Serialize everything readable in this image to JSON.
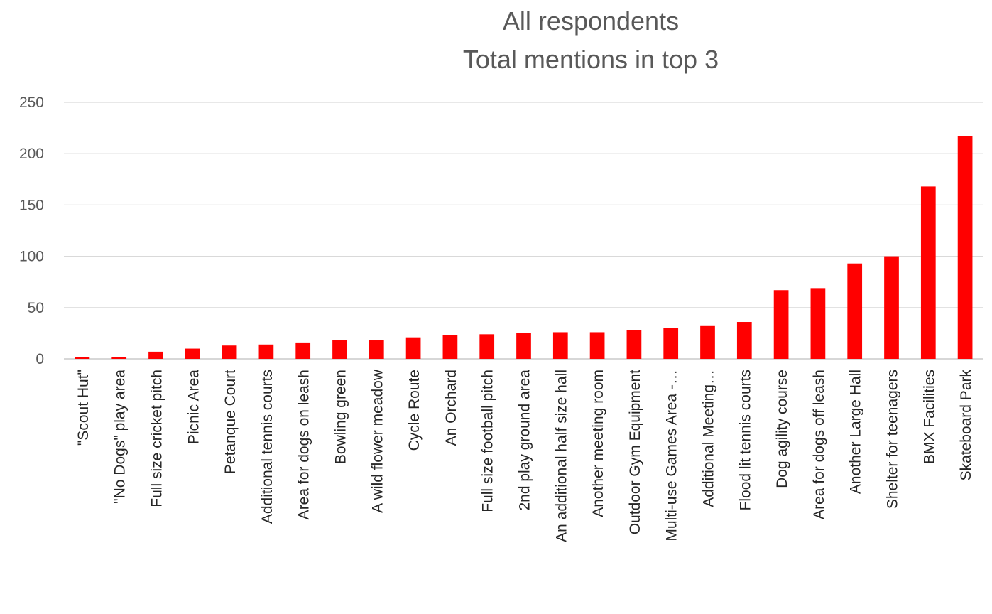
{
  "chart_data": {
    "type": "bar",
    "title_lines": [
      "All respondents",
      "Total mentions in top 3"
    ],
    "xlabel": "",
    "ylabel": "",
    "ylim": [
      0,
      250
    ],
    "yticks": [
      0,
      50,
      100,
      150,
      200,
      250
    ],
    "grid": true,
    "legend": "none",
    "bar_color": "#ff0000",
    "categories": [
      "\"Scout Hut\"",
      "\"No Dogs\" play area",
      "Full size cricket pitch",
      "Picnic Area",
      "Petanque Court",
      "Additional tennis courts",
      "Area for dogs on leash",
      "Bowling green",
      "A wild flower meadow",
      "Cycle Route",
      "An Orchard",
      "Full size football pitch",
      "2nd play ground area",
      "An additional half size hall",
      "Another meeting room",
      "Outdoor Gym Equipment",
      "Multi-use Games Area -…",
      "Additional Meeting…",
      "Flood lit tennis courts",
      "Dog agility course",
      "Area for dogs off leash",
      "Another Large Hall",
      "Shelter for teenagers",
      "BMX Facilities",
      "Skateboard Park"
    ],
    "values": [
      2,
      2,
      7,
      10,
      13,
      14,
      16,
      18,
      18,
      21,
      23,
      24,
      25,
      26,
      26,
      28,
      30,
      32,
      36,
      67,
      69,
      93,
      100,
      168,
      217
    ]
  }
}
